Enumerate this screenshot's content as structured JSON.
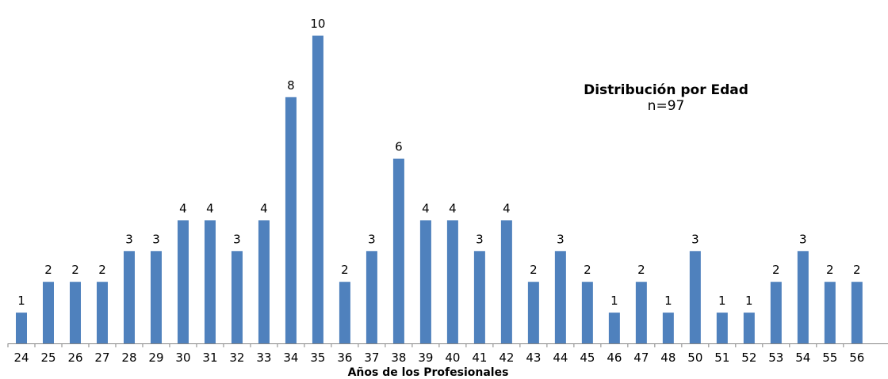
{
  "chart_data": {
    "type": "bar",
    "title": "Distribución por Edad",
    "subtitle": "n=97",
    "xlabel": "Años de los Profesionales",
    "ylabel": "",
    "ylim": [
      0,
      10
    ],
    "grid": false,
    "categories": [
      "24",
      "25",
      "26",
      "27",
      "28",
      "29",
      "30",
      "31",
      "32",
      "33",
      "34",
      "35",
      "36",
      "37",
      "38",
      "39",
      "40",
      "41",
      "42",
      "43",
      "44",
      "45",
      "46",
      "47",
      "48",
      "50",
      "51",
      "52",
      "53",
      "54",
      "55",
      "56"
    ],
    "values": [
      1,
      2,
      2,
      2,
      3,
      3,
      4,
      4,
      3,
      4,
      8,
      10,
      2,
      3,
      6,
      4,
      4,
      3,
      4,
      2,
      3,
      2,
      1,
      2,
      1,
      3,
      1,
      1,
      2,
      3,
      2,
      2
    ],
    "colors": {
      "bar": "#4f81bd",
      "axis": "#868686"
    }
  }
}
